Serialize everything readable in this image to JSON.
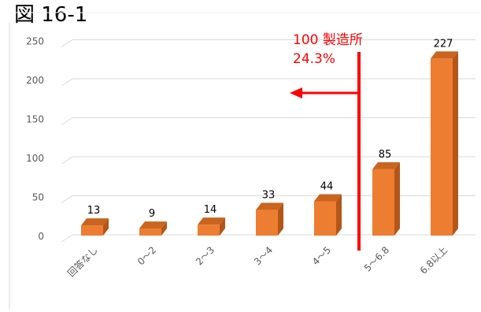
{
  "figure_label": "図 16-1",
  "colors": {
    "bar_front": "#ED7D31",
    "bar_side": "#B3561A",
    "bar_top": "#C9651F",
    "grid": "#D9D9D9",
    "annotation": "#FF0000"
  },
  "chart_data": {
    "type": "bar",
    "title": "",
    "xlabel": "",
    "ylabel": "",
    "categories": [
      "回答なし",
      "0～2",
      "2～3",
      "3～4",
      "4～5",
      "5～6.8",
      "6.8以上"
    ],
    "values": [
      13,
      9,
      14,
      33,
      44,
      85,
      227
    ],
    "data_labels": [
      "13",
      "9",
      "14",
      "33",
      "44",
      "85",
      "227"
    ],
    "ylim": [
      0,
      250
    ],
    "yticks": [
      0,
      50,
      100,
      150,
      200,
      250
    ],
    "ytick_labels": [
      "0",
      "50",
      "100",
      "150",
      "200",
      "250"
    ],
    "grid": true,
    "legend": "none",
    "annotation": {
      "line1": "100 製造所",
      "line2": "24.3%",
      "divider_between": [
        "4～5",
        "5～6.8"
      ],
      "arrow_direction": "left"
    }
  }
}
